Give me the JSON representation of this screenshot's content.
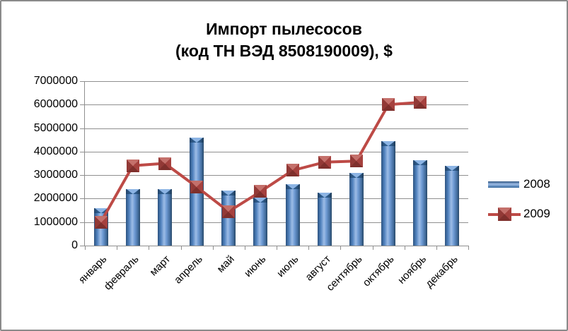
{
  "window": {
    "background": "#ffffff",
    "border_color": "#8a8a8a"
  },
  "chart_data": {
    "type": "bar",
    "title": "Импорт пылесосов",
    "subtitle": "(код ТН ВЭД 8508190009), $",
    "categories": [
      "январь",
      "февраль",
      "март",
      "апрель",
      "май",
      "июнь",
      "июль",
      "август",
      "сентябрь",
      "октябрь",
      "ноябрь",
      "декабрь"
    ],
    "series": [
      {
        "name": "2008",
        "type": "bar",
        "color": "#4f81bd",
        "values": [
          1600000,
          2400000,
          2400000,
          4600000,
          2350000,
          2050000,
          2600000,
          2250000,
          3100000,
          4450000,
          3650000,
          3400000
        ]
      },
      {
        "name": "2009",
        "type": "line",
        "color": "#c0504d",
        "marker": "square",
        "values": [
          1000000,
          3400000,
          3500000,
          2500000,
          1450000,
          2300000,
          3200000,
          3550000,
          3600000,
          6000000,
          6100000,
          null
        ]
      }
    ],
    "ylim": [
      0,
      7000000
    ],
    "ytick_step": 1000000,
    "ytick_labels": [
      "0",
      "1000000",
      "2000000",
      "3000000",
      "4000000",
      "5000000",
      "6000000",
      "7000000"
    ],
    "grid": true,
    "gridline_color": "#8f8f8f",
    "legend_position": "right"
  }
}
